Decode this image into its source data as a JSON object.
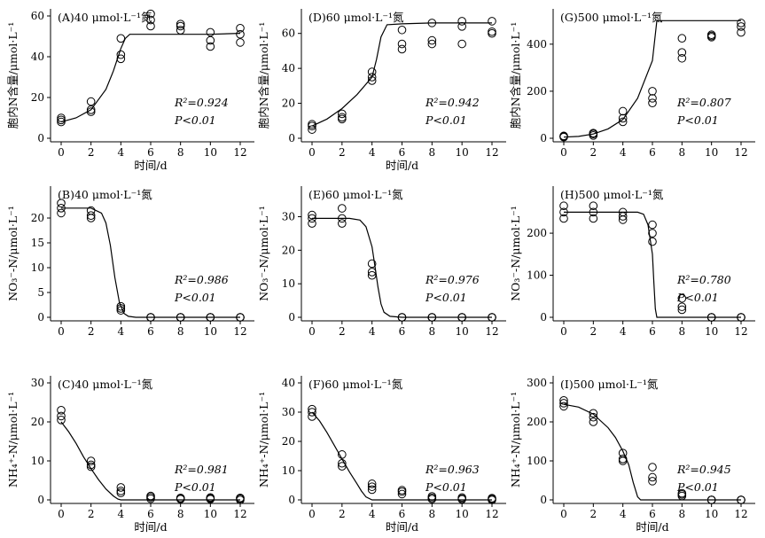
{
  "chart_data": [
    {
      "id": "A",
      "type": "scatter",
      "title": "(A)40 μmol·L⁻¹氮",
      "xlabel": "时间/d",
      "ylabel": "胞内N含量/μmol·L⁻¹",
      "xticks": [
        0,
        2,
        4,
        6,
        8,
        10,
        12
      ],
      "xlim": [
        0,
        12
      ],
      "yticks": [
        0,
        20,
        40,
        60
      ],
      "ylim": [
        0,
        60
      ],
      "x": [
        0,
        0,
        0,
        2,
        2,
        2,
        4,
        4,
        4,
        6,
        6,
        6,
        8,
        8,
        8,
        10,
        10,
        10,
        12,
        12,
        12
      ],
      "y": [
        8,
        9,
        10,
        13,
        14,
        18,
        39,
        41,
        49,
        55,
        58,
        61,
        53,
        55,
        56,
        45,
        48,
        52,
        47,
        51,
        54
      ],
      "fit": {
        "x": [
          0,
          1,
          2,
          3,
          3.5,
          4,
          4.3,
          4.6,
          5,
          6,
          8,
          10,
          12
        ],
        "y": [
          8,
          10,
          14,
          24,
          33,
          44,
          49,
          51,
          51,
          51,
          51,
          51,
          51.5
        ]
      },
      "r2": "R²=0.924",
      "p": "P<0.01"
    },
    {
      "id": "D",
      "type": "scatter",
      "title": "(D)60 μmol·L⁻¹氮",
      "xlabel": "时间/d",
      "ylabel": "胞内N含量/μmol·L⁻¹",
      "xticks": [
        0,
        2,
        4,
        6,
        8,
        10,
        12
      ],
      "xlim": [
        0,
        12
      ],
      "yticks": [
        0,
        20,
        40,
        60
      ],
      "ylim": [
        0,
        70
      ],
      "x": [
        0,
        0,
        0,
        2,
        2,
        2,
        4,
        4,
        4,
        6,
        6,
        6,
        8,
        8,
        8,
        10,
        10,
        10,
        12,
        12,
        12
      ],
      "y": [
        5,
        7,
        8,
        11,
        12,
        14,
        33,
        35,
        38,
        51,
        54,
        62,
        54,
        56,
        66,
        54,
        64,
        67,
        60,
        61,
        67
      ],
      "fit": {
        "x": [
          0,
          1,
          2,
          3,
          4,
          4.3,
          4.6,
          5,
          6,
          8,
          10,
          12
        ],
        "y": [
          7,
          11,
          17,
          25,
          35,
          45,
          58,
          65,
          65.5,
          66,
          66,
          66
        ]
      },
      "r2": "R²=0.942",
      "p": "P<0.01"
    },
    {
      "id": "G",
      "type": "scatter",
      "title": "(G)500 μmol·L⁻¹氮",
      "xlabel": "",
      "ylabel": "胞内N含量/μmol·L⁻¹",
      "xticks": [
        0,
        2,
        4,
        6,
        8,
        10,
        12
      ],
      "xlim": [
        0,
        12
      ],
      "yticks": [
        0,
        200,
        400
      ],
      "ylim": [
        0,
        520
      ],
      "x": [
        0,
        0,
        0,
        2,
        2,
        2,
        4,
        4,
        4,
        6,
        6,
        6,
        8,
        8,
        8,
        10,
        10,
        10,
        12,
        12,
        12
      ],
      "y": [
        5,
        8,
        10,
        12,
        18,
        22,
        70,
        85,
        115,
        150,
        170,
        200,
        340,
        365,
        425,
        430,
        435,
        440,
        450,
        475,
        490
      ],
      "fit": {
        "x": [
          0,
          1,
          2,
          3,
          4,
          5,
          6,
          6.3,
          8,
          10,
          12
        ],
        "y": [
          5,
          8,
          18,
          40,
          80,
          170,
          330,
          500,
          500,
          500,
          500
        ]
      },
      "r2": "R²=0.807",
      "p": "P<0.01"
    },
    {
      "id": "B",
      "type": "scatter",
      "title": "(B)40 μmol·L⁻¹氮",
      "xlabel": "",
      "ylabel": "NO₃⁻-N/μmol·L⁻¹",
      "xticks": [
        0,
        2,
        4,
        6,
        8,
        10,
        12
      ],
      "xlim": [
        0,
        12
      ],
      "yticks": [
        0,
        5,
        10,
        15,
        20
      ],
      "ylim": [
        0,
        25
      ],
      "x": [
        0,
        0,
        0,
        2,
        2,
        2,
        4,
        4,
        4,
        6,
        6,
        6,
        8,
        8,
        8,
        10,
        10,
        10,
        12,
        12,
        12
      ],
      "y": [
        21,
        22,
        23,
        20,
        20.5,
        21.5,
        1.4,
        1.8,
        2.2,
        0,
        0,
        0,
        0,
        0,
        0,
        0,
        0,
        0,
        0,
        0,
        0
      ],
      "fit": {
        "x": [
          0,
          2,
          2.7,
          3,
          3.3,
          3.6,
          3.9,
          4.2,
          4.5,
          5,
          6,
          8,
          10,
          12
        ],
        "y": [
          22,
          22,
          21,
          19,
          14.5,
          8,
          3,
          0.8,
          0.2,
          0,
          0,
          0,
          0,
          0
        ]
      },
      "r2": "R²=0.986",
      "p": "P<0.01"
    },
    {
      "id": "E",
      "type": "scatter",
      "title": "(E)60 μmol·L⁻¹氮",
      "xlabel": "",
      "ylabel": "NO₃⁻-N/μmol·L⁻¹",
      "xticks": [
        0,
        2,
        4,
        6,
        8,
        10,
        12
      ],
      "xlim": [
        0,
        12
      ],
      "yticks": [
        0,
        10,
        20,
        30
      ],
      "ylim": [
        0,
        37
      ],
      "x": [
        0,
        0,
        0,
        2,
        2,
        2,
        4,
        4,
        4,
        6,
        6,
        6,
        8,
        8,
        8,
        10,
        10,
        10,
        12,
        12,
        12
      ],
      "y": [
        28,
        29.5,
        30.5,
        28,
        29.5,
        32.5,
        12.5,
        13.5,
        16,
        0,
        0,
        0,
        0,
        0,
        0,
        0,
        0,
        0,
        0,
        0,
        0
      ],
      "fit": {
        "x": [
          0,
          2.5,
          3.2,
          3.6,
          4,
          4.2,
          4.4,
          4.6,
          4.8,
          5.2,
          6,
          8,
          10,
          12
        ],
        "y": [
          29.5,
          29.5,
          29,
          27,
          21,
          15,
          9,
          4,
          1.5,
          0.3,
          0,
          0,
          0,
          0
        ]
      },
      "r2": "R²=0.976",
      "p": "P<0.01"
    },
    {
      "id": "H",
      "type": "scatter",
      "title": "(H)500 μmol·L⁻¹氮",
      "xlabel": "",
      "ylabel": "NO₃⁻-N/μmol·L⁻¹",
      "xticks": [
        0,
        2,
        4,
        6,
        8,
        10,
        12
      ],
      "xlim": [
        0,
        12
      ],
      "yticks": [
        0,
        100,
        200
      ],
      "ylim": [
        0,
        295
      ],
      "x": [
        0,
        0,
        0,
        2,
        2,
        2,
        4,
        4,
        4,
        6,
        6,
        6,
        8,
        8,
        8,
        10,
        10,
        10,
        12,
        12,
        12
      ],
      "y": [
        235,
        250,
        265,
        235,
        250,
        265,
        232,
        240,
        250,
        180,
        200,
        220,
        18,
        25,
        45,
        0,
        0,
        0,
        0,
        0,
        0
      ],
      "fit": {
        "x": [
          0,
          4,
          5,
          5.4,
          5.7,
          6,
          6.1,
          6.2,
          6.3,
          8,
          10,
          12
        ],
        "y": [
          250,
          250,
          250,
          245,
          220,
          150,
          80,
          20,
          0,
          0,
          0,
          0
        ]
      },
      "r2": "R²=0.780",
      "p": "P<0.01"
    },
    {
      "id": "C",
      "type": "scatter",
      "title": "(C)40 μmol·L⁻¹氮",
      "xlabel": "时间/d",
      "ylabel": "NH₄⁺-N/μmol·L⁻¹",
      "xticks": [
        0,
        2,
        4,
        6,
        8,
        10,
        12
      ],
      "xlim": [
        0,
        12
      ],
      "yticks": [
        0,
        10,
        20,
        30
      ],
      "ylim": [
        0,
        30
      ],
      "x": [
        0,
        0,
        0,
        2,
        2,
        2,
        4,
        4,
        4,
        6,
        6,
        6,
        8,
        8,
        8,
        10,
        10,
        10,
        12,
        12,
        12
      ],
      "y": [
        20.5,
        21.5,
        23,
        8.5,
        9,
        10,
        1.8,
        2.3,
        3.2,
        0.3,
        0.7,
        1,
        0.2,
        0.4,
        0.5,
        0.2,
        0.4,
        0.6,
        0,
        0.3,
        0.5
      ],
      "fit": {
        "x": [
          0,
          0.5,
          1,
          1.5,
          2,
          2.5,
          3,
          3.5,
          3.8,
          4,
          6,
          8,
          10,
          12
        ],
        "y": [
          20,
          17.5,
          14.5,
          11,
          8,
          5.2,
          2.8,
          1,
          0.2,
          0,
          0,
          0,
          0,
          0
        ]
      },
      "r2": "R²=0.981",
      "p": "P<0.01"
    },
    {
      "id": "F",
      "type": "scatter",
      "title": "(F)60 μmol·L⁻¹氮",
      "xlabel": "时间/d",
      "ylabel": "NH₄⁺-N/μmol·L⁻¹",
      "xticks": [
        0,
        2,
        4,
        6,
        8,
        10,
        12
      ],
      "xlim": [
        0,
        12
      ],
      "yticks": [
        0,
        10,
        20,
        30,
        40
      ],
      "ylim": [
        0,
        40
      ],
      "x": [
        0,
        0,
        0,
        2,
        2,
        2,
        4,
        4,
        4,
        6,
        6,
        6,
        8,
        8,
        8,
        10,
        10,
        10,
        12,
        12,
        12
      ],
      "y": [
        28.5,
        30,
        31,
        11.5,
        12.5,
        15.5,
        3.5,
        4.5,
        5.5,
        2,
        2.8,
        3.3,
        0.3,
        0.7,
        1.2,
        0.2,
        0.4,
        0.8,
        0,
        0.3,
        0.6
      ],
      "fit": {
        "x": [
          0,
          0.5,
          1,
          1.5,
          2,
          2.5,
          3,
          3.3,
          3.6,
          4,
          6,
          8,
          10,
          12
        ],
        "y": [
          30,
          27,
          23,
          18.5,
          14,
          9.5,
          5.5,
          3,
          1,
          0,
          0,
          0,
          0,
          0
        ]
      },
      "r2": "R²=0.963",
      "p": "P<0.01"
    },
    {
      "id": "I",
      "type": "scatter",
      "title": "(I)500 μmol·L⁻¹氮",
      "xlabel": "时间/d",
      "ylabel": "NH₄⁺-N/μmol·L⁻¹",
      "xticks": [
        0,
        2,
        4,
        6,
        8,
        10,
        12
      ],
      "xlim": [
        0,
        12
      ],
      "yticks": [
        0,
        100,
        200,
        300
      ],
      "ylim": [
        0,
        300
      ],
      "x": [
        0,
        0,
        0,
        2,
        2,
        2,
        4,
        4,
        4,
        6,
        6,
        6,
        8,
        8,
        8,
        10,
        10,
        10,
        12,
        12,
        12
      ],
      "y": [
        240,
        248,
        255,
        200,
        212,
        222,
        100,
        105,
        120,
        48,
        58,
        84,
        10,
        14,
        17,
        0,
        0,
        0,
        0,
        0,
        0
      ],
      "fit": {
        "x": [
          0,
          1,
          2,
          3,
          3.5,
          4,
          4.4,
          4.7,
          5,
          5.2,
          6,
          8,
          10,
          12
        ],
        "y": [
          245,
          238,
          220,
          185,
          160,
          125,
          90,
          45,
          8,
          0,
          0,
          0,
          0,
          0
        ]
      },
      "r2": "R²=0.945",
      "p": "P<0.01"
    }
  ]
}
